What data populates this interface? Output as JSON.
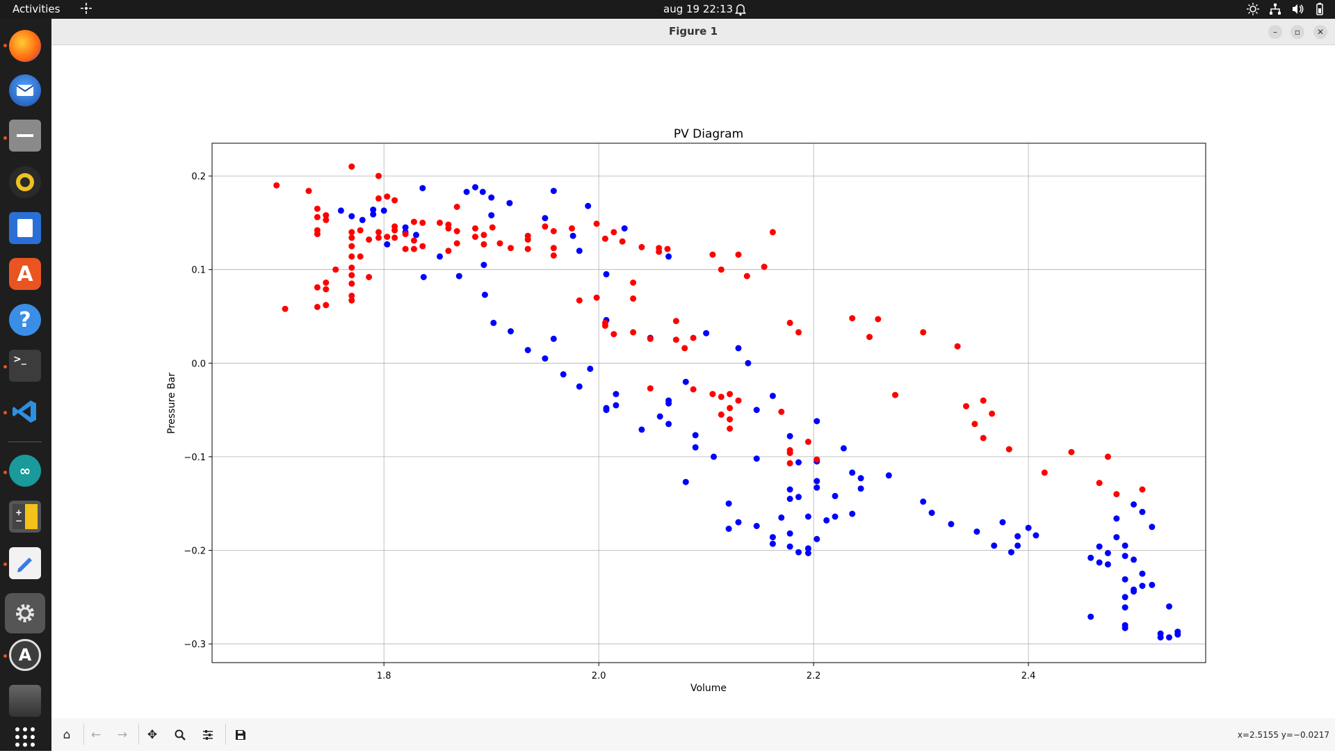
{
  "topbar": {
    "activities": "Activities",
    "clock": "aug 19  22:13"
  },
  "dock": {
    "items": [
      "firefox-icon",
      "thunderbird-icon",
      "files-icon",
      "rhythmbox-icon",
      "writer-icon",
      "app-center-icon",
      "help-icon",
      "terminal-icon",
      "vscode-icon",
      "arduino-icon",
      "calculator-icon",
      "text-editor-icon",
      "settings-icon",
      "updater-icon",
      "trash-icon",
      "app-grid-icon"
    ]
  },
  "window": {
    "title": "Figure 1"
  },
  "toolbar": {
    "coords": "x=2.5155 y=−0.0217"
  },
  "chart_data": {
    "type": "scatter",
    "title": "PV Diagram",
    "xlabel": "Volume",
    "ylabel": "Pressure Bar",
    "xlim": [
      1.64,
      2.565
    ],
    "ylim": [
      -0.32,
      0.235
    ],
    "xticks": [
      1.8,
      2.0,
      2.2,
      2.4
    ],
    "xtick_labels": [
      "1.8",
      "2.0",
      "2.2",
      "2.4"
    ],
    "yticks": [
      -0.3,
      -0.2,
      -0.1,
      0.0,
      0.1,
      0.2
    ],
    "ytick_labels": [
      "−0.3",
      "−0.2",
      "−0.1",
      "0.0",
      "0.1",
      "0.2"
    ],
    "grid": true,
    "series": [
      {
        "color": "#0000ff",
        "points": [
          [
            1.76,
            0.163
          ],
          [
            1.77,
            0.157
          ],
          [
            1.78,
            0.153
          ],
          [
            1.79,
            0.159
          ],
          [
            1.79,
            0.164
          ],
          [
            1.8,
            0.163
          ],
          [
            1.803,
            0.127
          ],
          [
            1.82,
            0.14
          ],
          [
            1.82,
            0.145
          ],
          [
            1.83,
            0.137
          ],
          [
            1.836,
            0.187
          ],
          [
            1.837,
            0.092
          ],
          [
            1.852,
            0.114
          ],
          [
            1.87,
            0.093
          ],
          [
            1.877,
            0.183
          ],
          [
            1.885,
            0.188
          ],
          [
            1.892,
            0.183
          ],
          [
            1.893,
            0.105
          ],
          [
            1.894,
            0.073
          ],
          [
            1.9,
            0.177
          ],
          [
            1.9,
            0.158
          ],
          [
            1.902,
            0.043
          ],
          [
            1.917,
            0.171
          ],
          [
            1.918,
            0.034
          ],
          [
            1.934,
            0.014
          ],
          [
            1.95,
            0.155
          ],
          [
            1.95,
            0.005
          ],
          [
            1.958,
            0.184
          ],
          [
            1.958,
            0.026
          ],
          [
            1.967,
            -0.012
          ],
          [
            1.976,
            0.136
          ],
          [
            1.982,
            -0.025
          ],
          [
            1.982,
            0.12
          ],
          [
            1.99,
            0.168
          ],
          [
            1.992,
            -0.006
          ],
          [
            2.007,
            0.095
          ],
          [
            2.007,
            0.046
          ],
          [
            2.007,
            -0.048
          ],
          [
            2.007,
            -0.05
          ],
          [
            2.016,
            -0.033
          ],
          [
            2.016,
            -0.045
          ],
          [
            2.024,
            0.144
          ],
          [
            2.04,
            -0.071
          ],
          [
            2.048,
            0.027
          ],
          [
            2.057,
            -0.057
          ],
          [
            2.065,
            0.114
          ],
          [
            2.065,
            -0.04
          ],
          [
            2.065,
            -0.043
          ],
          [
            2.065,
            -0.065
          ],
          [
            2.081,
            -0.02
          ],
          [
            2.081,
            -0.127
          ],
          [
            2.09,
            -0.077
          ],
          [
            2.09,
            -0.09
          ],
          [
            2.1,
            0.032
          ],
          [
            2.107,
            -0.1
          ],
          [
            2.121,
            -0.15
          ],
          [
            2.121,
            -0.177
          ],
          [
            2.13,
            -0.17
          ],
          [
            2.13,
            0.016
          ],
          [
            2.139,
            0.0
          ],
          [
            2.147,
            -0.05
          ],
          [
            2.147,
            -0.102
          ],
          [
            2.147,
            -0.174
          ],
          [
            2.162,
            -0.035
          ],
          [
            2.162,
            -0.186
          ],
          [
            2.162,
            -0.193
          ],
          [
            2.17,
            -0.165
          ],
          [
            2.178,
            -0.078
          ],
          [
            2.178,
            -0.135
          ],
          [
            2.178,
            -0.145
          ],
          [
            2.178,
            -0.182
          ],
          [
            2.178,
            -0.196
          ],
          [
            2.186,
            -0.106
          ],
          [
            2.186,
            -0.143
          ],
          [
            2.186,
            -0.202
          ],
          [
            2.195,
            -0.164
          ],
          [
            2.195,
            -0.198
          ],
          [
            2.195,
            -0.203
          ],
          [
            2.203,
            -0.062
          ],
          [
            2.203,
            -0.105
          ],
          [
            2.203,
            -0.126
          ],
          [
            2.203,
            -0.133
          ],
          [
            2.203,
            -0.188
          ],
          [
            2.212,
            -0.168
          ],
          [
            2.22,
            -0.142
          ],
          [
            2.22,
            -0.164
          ],
          [
            2.228,
            -0.091
          ],
          [
            2.236,
            -0.117
          ],
          [
            2.236,
            -0.161
          ],
          [
            2.244,
            -0.123
          ],
          [
            2.244,
            -0.134
          ],
          [
            2.27,
            -0.12
          ],
          [
            2.302,
            -0.148
          ],
          [
            2.31,
            -0.16
          ],
          [
            2.328,
            -0.172
          ],
          [
            2.352,
            -0.18
          ],
          [
            2.368,
            -0.195
          ],
          [
            2.376,
            -0.17
          ],
          [
            2.384,
            -0.202
          ],
          [
            2.39,
            -0.185
          ],
          [
            2.39,
            -0.195
          ],
          [
            2.4,
            -0.176
          ],
          [
            2.407,
            -0.184
          ],
          [
            2.458,
            -0.208
          ],
          [
            2.458,
            -0.271
          ],
          [
            2.466,
            -0.196
          ],
          [
            2.466,
            -0.213
          ],
          [
            2.474,
            -0.203
          ],
          [
            2.474,
            -0.215
          ],
          [
            2.482,
            -0.166
          ],
          [
            2.482,
            -0.186
          ],
          [
            2.49,
            -0.195
          ],
          [
            2.49,
            -0.206
          ],
          [
            2.49,
            -0.231
          ],
          [
            2.49,
            -0.25
          ],
          [
            2.49,
            -0.261
          ],
          [
            2.49,
            -0.28
          ],
          [
            2.49,
            -0.283
          ],
          [
            2.498,
            -0.151
          ],
          [
            2.498,
            -0.21
          ],
          [
            2.498,
            -0.242
          ],
          [
            2.498,
            -0.244
          ],
          [
            2.506,
            -0.159
          ],
          [
            2.506,
            -0.225
          ],
          [
            2.506,
            -0.238
          ],
          [
            2.515,
            -0.175
          ],
          [
            2.515,
            -0.237
          ],
          [
            2.523,
            -0.289
          ],
          [
            2.523,
            -0.293
          ],
          [
            2.531,
            -0.26
          ],
          [
            2.531,
            -0.293
          ],
          [
            2.539,
            -0.287
          ],
          [
            2.539,
            -0.29
          ]
        ]
      },
      {
        "color": "#ff0000",
        "points": [
          [
            1.7,
            0.19
          ],
          [
            1.708,
            0.058
          ],
          [
            1.73,
            0.184
          ],
          [
            1.738,
            0.165
          ],
          [
            1.738,
            0.156
          ],
          [
            1.738,
            0.142
          ],
          [
            1.738,
            0.138
          ],
          [
            1.738,
            0.081
          ],
          [
            1.738,
            0.06
          ],
          [
            1.746,
            0.158
          ],
          [
            1.746,
            0.153
          ],
          [
            1.746,
            0.086
          ],
          [
            1.746,
            0.079
          ],
          [
            1.746,
            0.062
          ],
          [
            1.755,
            0.1
          ],
          [
            1.77,
            0.21
          ],
          [
            1.77,
            0.14
          ],
          [
            1.77,
            0.134
          ],
          [
            1.77,
            0.125
          ],
          [
            1.77,
            0.114
          ],
          [
            1.77,
            0.102
          ],
          [
            1.77,
            0.094
          ],
          [
            1.77,
            0.085
          ],
          [
            1.77,
            0.072
          ],
          [
            1.77,
            0.067
          ],
          [
            1.778,
            0.142
          ],
          [
            1.778,
            0.114
          ],
          [
            1.786,
            0.132
          ],
          [
            1.786,
            0.092
          ],
          [
            1.795,
            0.2
          ],
          [
            1.795,
            0.176
          ],
          [
            1.795,
            0.14
          ],
          [
            1.795,
            0.134
          ],
          [
            1.803,
            0.178
          ],
          [
            1.803,
            0.135
          ],
          [
            1.81,
            0.174
          ],
          [
            1.81,
            0.146
          ],
          [
            1.81,
            0.142
          ],
          [
            1.81,
            0.134
          ],
          [
            1.82,
            0.138
          ],
          [
            1.82,
            0.122
          ],
          [
            1.828,
            0.151
          ],
          [
            1.828,
            0.131
          ],
          [
            1.828,
            0.122
          ],
          [
            1.836,
            0.15
          ],
          [
            1.836,
            0.125
          ],
          [
            1.852,
            0.15
          ],
          [
            1.86,
            0.148
          ],
          [
            1.86,
            0.144
          ],
          [
            1.86,
            0.12
          ],
          [
            1.868,
            0.167
          ],
          [
            1.868,
            0.141
          ],
          [
            1.868,
            0.128
          ],
          [
            1.885,
            0.144
          ],
          [
            1.885,
            0.135
          ],
          [
            1.893,
            0.137
          ],
          [
            1.893,
            0.127
          ],
          [
            1.901,
            0.145
          ],
          [
            1.908,
            0.128
          ],
          [
            1.918,
            0.123
          ],
          [
            1.934,
            0.136
          ],
          [
            1.934,
            0.132
          ],
          [
            1.934,
            0.122
          ],
          [
            1.95,
            0.146
          ],
          [
            1.958,
            0.141
          ],
          [
            1.958,
            0.123
          ],
          [
            1.958,
            0.115
          ],
          [
            1.975,
            0.144
          ],
          [
            1.982,
            0.067
          ],
          [
            1.998,
            0.149
          ],
          [
            1.998,
            0.07
          ],
          [
            2.006,
            0.133
          ],
          [
            2.006,
            0.043
          ],
          [
            2.006,
            0.04
          ],
          [
            2.014,
            0.14
          ],
          [
            2.014,
            0.031
          ],
          [
            2.022,
            0.13
          ],
          [
            2.032,
            0.086
          ],
          [
            2.032,
            0.069
          ],
          [
            2.032,
            0.033
          ],
          [
            2.04,
            0.124
          ],
          [
            2.048,
            -0.027
          ],
          [
            2.048,
            0.026
          ],
          [
            2.056,
            0.123
          ],
          [
            2.056,
            0.119
          ],
          [
            2.064,
            0.122
          ],
          [
            2.072,
            0.045
          ],
          [
            2.072,
            0.025
          ],
          [
            2.08,
            0.016
          ],
          [
            2.088,
            0.027
          ],
          [
            2.088,
            -0.028
          ],
          [
            2.106,
            0.116
          ],
          [
            2.106,
            -0.033
          ],
          [
            2.114,
            0.1
          ],
          [
            2.114,
            -0.036
          ],
          [
            2.114,
            -0.055
          ],
          [
            2.122,
            -0.033
          ],
          [
            2.122,
            -0.048
          ],
          [
            2.122,
            -0.06
          ],
          [
            2.122,
            -0.07
          ],
          [
            2.13,
            0.116
          ],
          [
            2.13,
            -0.04
          ],
          [
            2.138,
            0.093
          ],
          [
            2.154,
            0.103
          ],
          [
            2.162,
            0.14
          ],
          [
            2.17,
            -0.052
          ],
          [
            2.178,
            0.043
          ],
          [
            2.178,
            -0.093
          ],
          [
            2.178,
            -0.096
          ],
          [
            2.178,
            -0.107
          ],
          [
            2.186,
            0.033
          ],
          [
            2.195,
            -0.084
          ],
          [
            2.203,
            -0.103
          ],
          [
            2.236,
            0.048
          ],
          [
            2.252,
            0.028
          ],
          [
            2.26,
            0.047
          ],
          [
            2.276,
            -0.034
          ],
          [
            2.302,
            0.033
          ],
          [
            2.334,
            0.018
          ],
          [
            2.342,
            -0.046
          ],
          [
            2.35,
            -0.065
          ],
          [
            2.358,
            -0.04
          ],
          [
            2.358,
            -0.08
          ],
          [
            2.366,
            -0.054
          ],
          [
            2.382,
            -0.092
          ],
          [
            2.415,
            -0.117
          ],
          [
            2.44,
            -0.095
          ],
          [
            2.466,
            -0.128
          ],
          [
            2.474,
            -0.1
          ],
          [
            2.482,
            -0.14
          ],
          [
            2.506,
            -0.135
          ]
        ]
      }
    ]
  }
}
